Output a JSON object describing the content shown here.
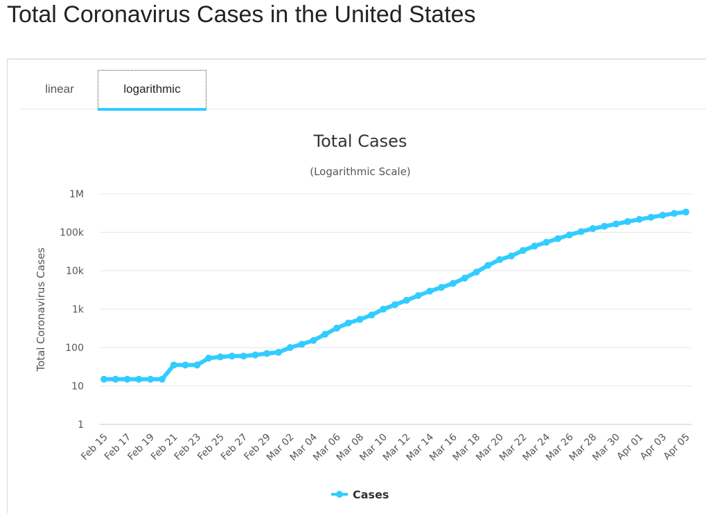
{
  "page": {
    "title": "Total Coronavirus Cases in the United States"
  },
  "tabs": [
    {
      "label": "linear",
      "active": false
    },
    {
      "label": "logarithmic",
      "active": true
    }
  ],
  "colors": {
    "accent": "#33ccff",
    "series": "#33ccff",
    "grid": "#e6e6e6",
    "axis_text": "#555555"
  },
  "chart_data": {
    "type": "line",
    "title": "Total Cases",
    "subtitle": "(Logarithmic Scale)",
    "ylabel": "Total Coronavirus Cases",
    "xlabel": "",
    "yscale": "log",
    "ylim": [
      1,
      1000000
    ],
    "yticks": [
      {
        "value": 1,
        "label": "1"
      },
      {
        "value": 10,
        "label": "10"
      },
      {
        "value": 100,
        "label": "100"
      },
      {
        "value": 1000,
        "label": "1k"
      },
      {
        "value": 10000,
        "label": "10k"
      },
      {
        "value": 100000,
        "label": "100k"
      },
      {
        "value": 1000000,
        "label": "1M"
      }
    ],
    "x": [
      "Feb 15",
      "Feb 16",
      "Feb 17",
      "Feb 18",
      "Feb 19",
      "Feb 20",
      "Feb 21",
      "Feb 22",
      "Feb 23",
      "Feb 24",
      "Feb 25",
      "Feb 26",
      "Feb 27",
      "Feb 28",
      "Feb 29",
      "Mar 01",
      "Mar 02",
      "Mar 03",
      "Mar 04",
      "Mar 05",
      "Mar 06",
      "Mar 07",
      "Mar 08",
      "Mar 09",
      "Mar 10",
      "Mar 11",
      "Mar 12",
      "Mar 13",
      "Mar 14",
      "Mar 15",
      "Mar 16",
      "Mar 17",
      "Mar 18",
      "Mar 19",
      "Mar 20",
      "Mar 21",
      "Mar 22",
      "Mar 23",
      "Mar 24",
      "Mar 25",
      "Mar 26",
      "Mar 27",
      "Mar 28",
      "Mar 29",
      "Mar 30",
      "Mar 31",
      "Apr 01",
      "Apr 02",
      "Apr 03",
      "Apr 04",
      "Apr 05"
    ],
    "xtick_labels": [
      "Feb 15",
      "Feb 17",
      "Feb 19",
      "Feb 21",
      "Feb 23",
      "Feb 25",
      "Feb 27",
      "Feb 29",
      "Mar 02",
      "Mar 04",
      "Mar 06",
      "Mar 08",
      "Mar 10",
      "Mar 12",
      "Mar 14",
      "Mar 16",
      "Mar 18",
      "Mar 20",
      "Mar 22",
      "Mar 24",
      "Mar 26",
      "Mar 28",
      "Mar 30",
      "Apr 01",
      "Apr 03",
      "Apr 05"
    ],
    "series": [
      {
        "name": "Cases",
        "values": [
          15,
          15,
          15,
          15,
          15,
          15,
          35,
          35,
          35,
          53,
          57,
          60,
          60,
          64,
          70,
          75,
          100,
          122,
          153,
          221,
          319,
          435,
          541,
          704,
          994,
          1301,
          1697,
          2247,
          2943,
          3680,
          4663,
          6411,
          9197,
          13779,
          19383,
          24207,
          33566,
          43781,
          54856,
          68211,
          85356,
          104126,
          124665,
          143055,
          164620,
          189618,
          216722,
          245540,
          277953,
          309528,
          337072
        ]
      }
    ],
    "legend": {
      "position": "bottom-center",
      "entries": [
        "Cases"
      ]
    },
    "grid": true
  }
}
